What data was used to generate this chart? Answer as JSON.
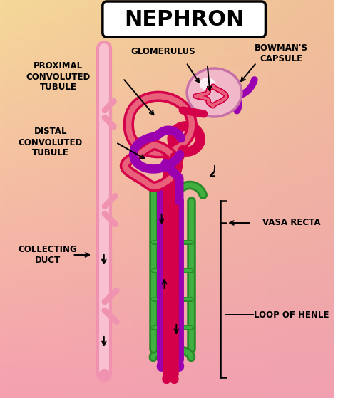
{
  "title": "NEPHRON",
  "labels": {
    "proximal": "PROXIMAL\nCONVOLUTED\nTUBULE",
    "distal": "DISTAL\nCONVOLUTED\nTUBULE",
    "glomerulus": "GLOMERULUS",
    "bowmans": "BOWMAN'S\nCAPSULE",
    "collecting": "COLLECTING\nDUCT",
    "vasa_recta": "VASA RECTA",
    "loop": "LOOP OF HENLE"
  },
  "colors": {
    "cd_pink": "#f093b0",
    "cd_light": "#f8c0d0",
    "red": "#d4004a",
    "red_light": "#e8607a",
    "purple": "#9b00b0",
    "purple_light": "#c060d0",
    "green": "#2a8a2a",
    "green_light": "#40b040",
    "bowmans_fill": "#f0b8c8",
    "bowmans_edge": "#c870a8",
    "glom_fill": "#e06080",
    "white_highlight": "#ffffff",
    "bg_left": "#f5d898",
    "bg_right": "#f0a0b0"
  },
  "figure_size": [
    4.74,
    5.59
  ],
  "dpi": 100
}
